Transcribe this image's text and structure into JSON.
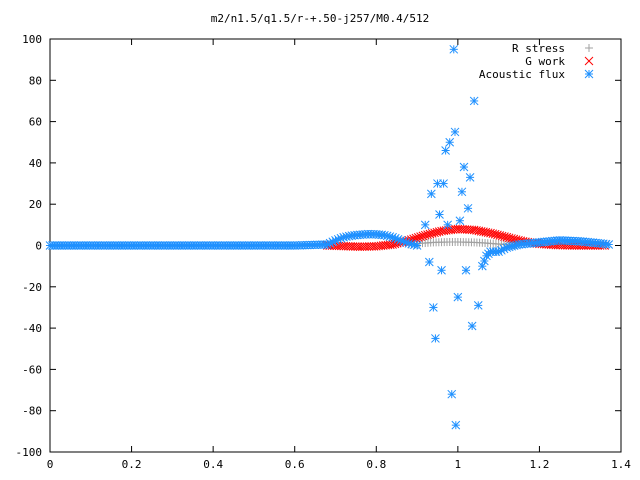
{
  "chart_data": {
    "type": "scatter",
    "title": "m2/n1.5/q1.5/r-+.50-j257/M0.4/512",
    "xlabel": "",
    "ylabel": "",
    "xlim": [
      0,
      1.4
    ],
    "ylim": [
      -100,
      100
    ],
    "x_ticks": [
      "0",
      "0.2",
      "0.4",
      "0.6",
      "0.8",
      "1",
      "1.2",
      "1.4"
    ],
    "y_ticks": [
      "100",
      "80",
      "60",
      "40",
      "20",
      "0",
      "-20",
      "-40",
      "-60",
      "-80",
      "-100"
    ],
    "grid": false,
    "legend_position": "top-right",
    "series": [
      {
        "name": "R stress",
        "marker": "plus",
        "color": "#a0a0a0",
        "points": [
          [
            0.88,
            0.5
          ],
          [
            0.9,
            1.0
          ],
          [
            0.92,
            1.2
          ],
          [
            0.94,
            1.5
          ],
          [
            0.96,
            1.6
          ],
          [
            0.98,
            1.7
          ],
          [
            1.0,
            1.7
          ],
          [
            1.02,
            1.6
          ],
          [
            1.04,
            1.5
          ],
          [
            1.06,
            1.3
          ],
          [
            1.08,
            1.0
          ],
          [
            1.1,
            0.7
          ],
          [
            1.12,
            0.4
          ],
          [
            1.14,
            0.2
          ]
        ]
      },
      {
        "name": "G work",
        "marker": "x",
        "color": "#ff0000",
        "points": [
          [
            0.68,
            0.0
          ],
          [
            0.72,
            -0.3
          ],
          [
            0.76,
            -0.6
          ],
          [
            0.8,
            -0.4
          ],
          [
            0.84,
            0.5
          ],
          [
            0.88,
            2.5
          ],
          [
            0.92,
            5.0
          ],
          [
            0.96,
            7.0
          ],
          [
            1.0,
            8.0
          ],
          [
            1.04,
            7.5
          ],
          [
            1.08,
            6.0
          ],
          [
            1.12,
            4.0
          ],
          [
            1.16,
            2.0
          ],
          [
            1.2,
            0.8
          ],
          [
            1.24,
            0.2
          ],
          [
            1.28,
            0.0
          ],
          [
            1.32,
            0.0
          ],
          [
            1.36,
            0.0
          ]
        ]
      },
      {
        "name": "Acoustic flux",
        "marker": "star",
        "color": "#1e90ff",
        "points": [
          [
            0.0,
            0.0
          ],
          [
            0.1,
            0.0
          ],
          [
            0.2,
            0.0
          ],
          [
            0.3,
            0.0
          ],
          [
            0.4,
            0.0
          ],
          [
            0.5,
            0.0
          ],
          [
            0.6,
            0.0
          ],
          [
            0.68,
            0.5
          ],
          [
            0.7,
            2.5
          ],
          [
            0.72,
            4.0
          ],
          [
            0.74,
            4.8
          ],
          [
            0.76,
            5.2
          ],
          [
            0.78,
            5.5
          ],
          [
            0.8,
            5.4
          ],
          [
            0.82,
            5.0
          ],
          [
            0.84,
            4.0
          ],
          [
            0.86,
            2.5
          ],
          [
            0.88,
            1.0
          ],
          [
            0.9,
            0.0
          ],
          [
            0.92,
            10.0
          ],
          [
            0.93,
            -8.0
          ],
          [
            0.935,
            25.0
          ],
          [
            0.94,
            -30.0
          ],
          [
            0.945,
            -45.0
          ],
          [
            0.95,
            30.0
          ],
          [
            0.955,
            15.0
          ],
          [
            0.96,
            -12.0
          ],
          [
            0.965,
            30.0
          ],
          [
            0.97,
            46.0
          ],
          [
            0.975,
            10.0
          ],
          [
            0.98,
            50.0
          ],
          [
            0.985,
            -72.0
          ],
          [
            0.99,
            95.0
          ],
          [
            0.993,
            55.0
          ],
          [
            0.995,
            -87.0
          ],
          [
            1.0,
            -25.0
          ],
          [
            1.005,
            12.0
          ],
          [
            1.01,
            26.0
          ],
          [
            1.015,
            38.0
          ],
          [
            1.02,
            -12.0
          ],
          [
            1.025,
            18.0
          ],
          [
            1.03,
            33.0
          ],
          [
            1.035,
            -39.0
          ],
          [
            1.04,
            70.0
          ],
          [
            1.05,
            -29.0
          ],
          [
            1.06,
            -10.0
          ],
          [
            1.07,
            -5.0
          ],
          [
            1.08,
            -3.0
          ],
          [
            1.1,
            -3.0
          ],
          [
            1.12,
            -1.0
          ],
          [
            1.15,
            0.5
          ],
          [
            1.2,
            1.5
          ],
          [
            1.25,
            2.5
          ],
          [
            1.3,
            2.0
          ],
          [
            1.35,
            1.0
          ],
          [
            1.37,
            0.5
          ]
        ]
      }
    ]
  }
}
